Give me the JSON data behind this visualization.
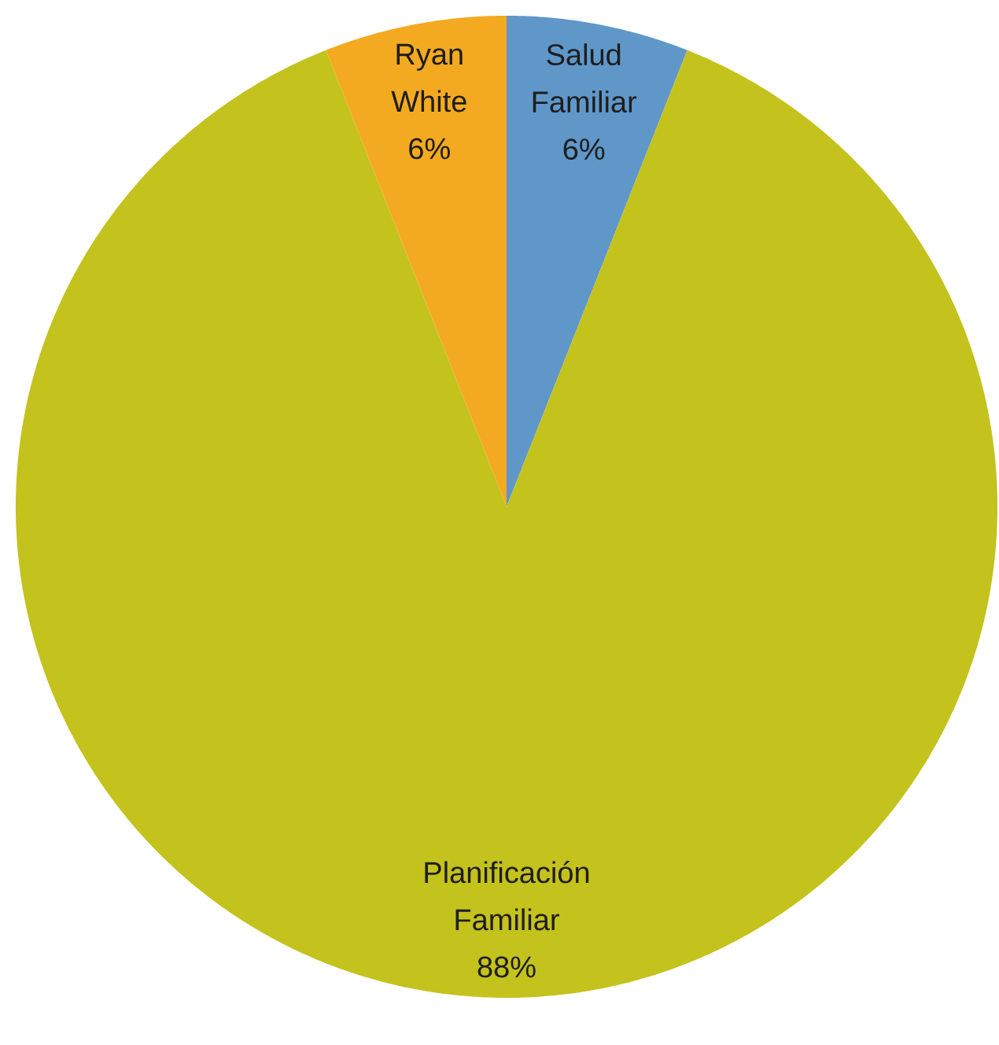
{
  "chart_data": {
    "type": "pie",
    "categories": [
      "Salud Familiar",
      "Planificación Familiar",
      "Ryan White"
    ],
    "values": [
      6,
      88,
      6
    ],
    "colors": [
      "#5f97c9",
      "#c4c21c",
      "#f4aa20"
    ],
    "value_labels": [
      "6%",
      "88%",
      "6%"
    ]
  }
}
